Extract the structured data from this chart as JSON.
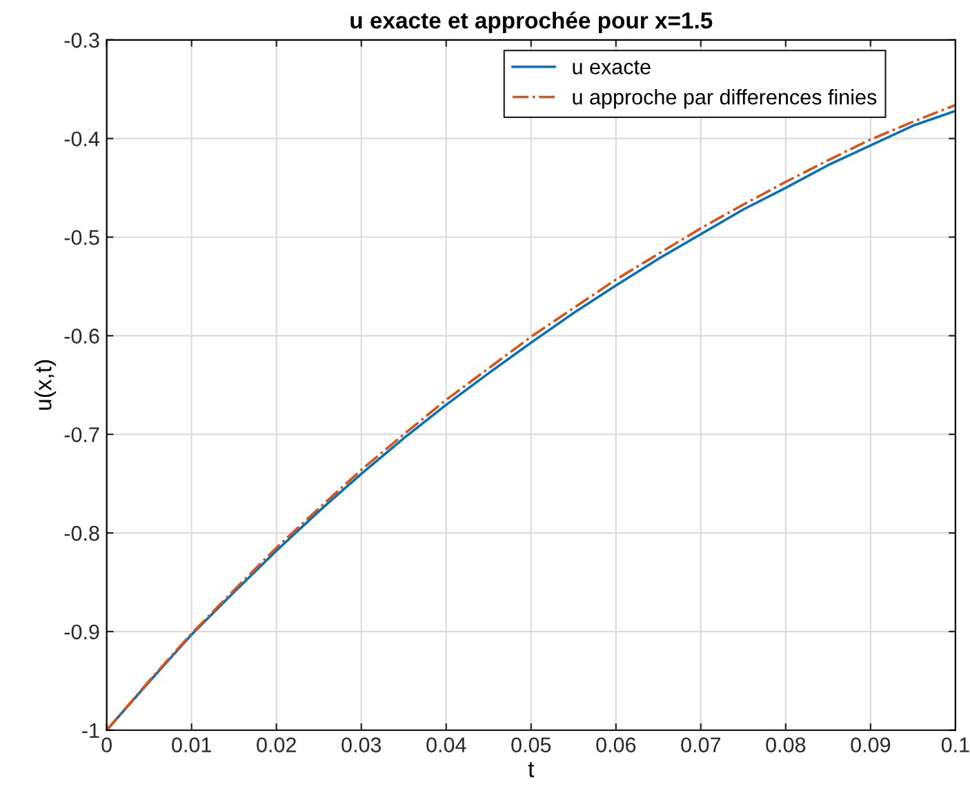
{
  "chart_data": {
    "type": "line",
    "title": "u exacte et approchée pour x=1.5",
    "xlabel": "t",
    "ylabel": "u(x,t)",
    "x": [
      0,
      0.005,
      0.01,
      0.015,
      0.02,
      0.025,
      0.03,
      0.035,
      0.04,
      0.045,
      0.05,
      0.055,
      0.06,
      0.065,
      0.07,
      0.075,
      0.08,
      0.085,
      0.09,
      0.095,
      0.1
    ],
    "series": [
      {
        "name": "u exacte",
        "color": "#0072bd",
        "line_style": "solid",
        "values": [
          -1,
          -0.951,
          -0.903,
          -0.86,
          -0.818,
          -0.778,
          -0.74,
          -0.704,
          -0.67,
          -0.638,
          -0.607,
          -0.577,
          -0.549,
          -0.522,
          -0.497,
          -0.472,
          -0.45,
          -0.427,
          -0.407,
          -0.387,
          -0.372
        ]
      },
      {
        "name": "u approche par differences finies",
        "color": "#d95319",
        "line_style": "dashdot",
        "values": [
          -1,
          -0.95,
          -0.902,
          -0.858,
          -0.815,
          -0.775,
          -0.736,
          -0.7,
          -0.665,
          -0.633,
          -0.601,
          -0.572,
          -0.543,
          -0.517,
          -0.491,
          -0.467,
          -0.444,
          -0.422,
          -0.401,
          -0.383,
          -0.366
        ]
      }
    ],
    "xlim": [
      0,
      0.1
    ],
    "ylim": [
      -1,
      -0.3
    ],
    "xticks": [
      0,
      0.01,
      0.02,
      0.03,
      0.04,
      0.05,
      0.06,
      0.07,
      0.08,
      0.09,
      0.1
    ],
    "yticks": [
      -1,
      -0.9,
      -0.8,
      -0.7,
      -0.6,
      -0.5,
      -0.4,
      -0.3
    ],
    "grid": true,
    "legend": "top right"
  }
}
